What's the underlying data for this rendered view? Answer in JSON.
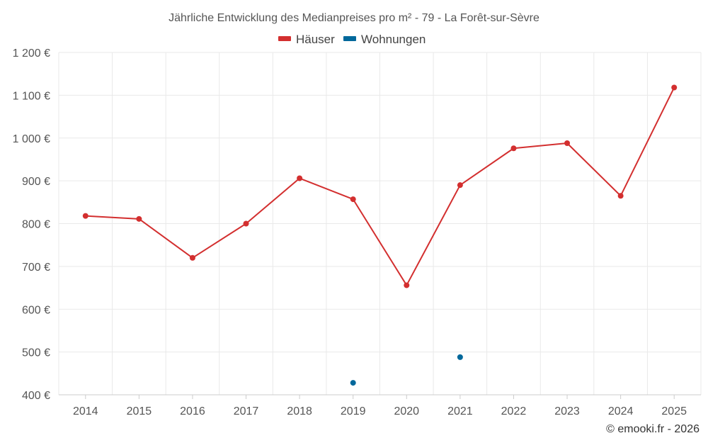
{
  "chart_data": {
    "type": "line",
    "title": "Jährliche Entwicklung des Medianpreises pro m² - 79 - La Forêt-sur-Sèvre",
    "categories": [
      "2014",
      "2015",
      "2016",
      "2017",
      "2018",
      "2019",
      "2020",
      "2021",
      "2022",
      "2023",
      "2024",
      "2025"
    ],
    "ylim": [
      400,
      1200
    ],
    "yticks": [
      400,
      500,
      600,
      700,
      800,
      900,
      1000,
      1100,
      1200
    ],
    "ytick_labels": [
      "400 €",
      "500 €",
      "600 €",
      "700 €",
      "800 €",
      "900 €",
      "1 000 €",
      "1 100 €",
      "1 200 €"
    ],
    "grid": true,
    "legend_position": "top-center",
    "series": [
      {
        "name": "Häuser",
        "color": "#d32f2f",
        "values": [
          818,
          811,
          720,
          800,
          906,
          857,
          656,
          890,
          976,
          988,
          865,
          1118
        ]
      },
      {
        "name": "Wohnungen",
        "color": "#01689b",
        "values": [
          null,
          null,
          null,
          null,
          null,
          428,
          null,
          488,
          null,
          null,
          null,
          null
        ]
      }
    ]
  },
  "credit": "© emooki.fr - 2026"
}
